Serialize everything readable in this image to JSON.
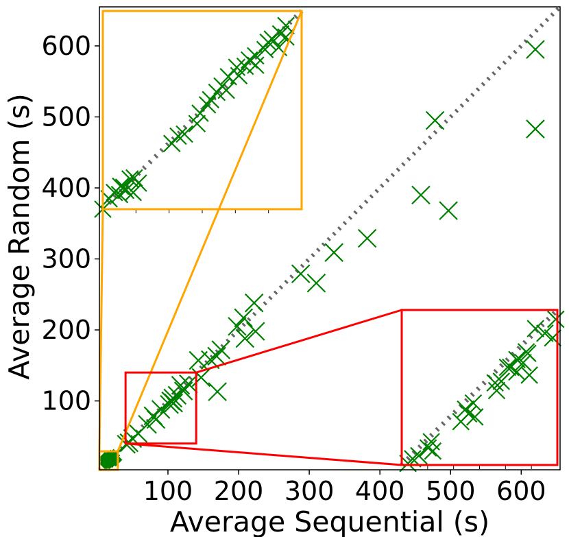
{
  "chart_data": {
    "type": "scatter",
    "xlabel": "Average Sequential (s)",
    "ylabel": "Average Random (s)",
    "xlim": [
      3,
      655
    ],
    "ylim": [
      3,
      655
    ],
    "xticks": [
      100,
      200,
      300,
      400,
      500,
      600
    ],
    "yticks": [
      100,
      200,
      300,
      400,
      500,
      600
    ],
    "grid": false,
    "diagonal": {
      "style": "dotted",
      "color": "#666666"
    },
    "colors": {
      "markers": "#008000",
      "zoom_small": "#ffa500",
      "zoom_large": "#ff0000",
      "diagonal": "#666666"
    },
    "series": [
      {
        "marker": "x",
        "color": "#008000",
        "points": [
          [
            620,
            595
          ],
          [
            620,
            483
          ],
          [
            478,
            495
          ],
          [
            458,
            390
          ],
          [
            497,
            368
          ],
          [
            382,
            329
          ],
          [
            335,
            309
          ],
          [
            288,
            279
          ],
          [
            310,
            266
          ],
          [
            222,
            238
          ],
          [
            207,
            217
          ],
          [
            198,
            205
          ],
          [
            224,
            198
          ],
          [
            209,
            188
          ],
          [
            175,
            172
          ],
          [
            169,
            163
          ],
          [
            160,
            158
          ],
          [
            143,
            157
          ],
          [
            147,
            133
          ],
          [
            129,
            124
          ],
          [
            170,
            113
          ],
          [
            118,
            122
          ],
          [
            122,
            114
          ],
          [
            113,
            108
          ],
          [
            107,
            104
          ],
          [
            104,
            100
          ],
          [
            102,
            95
          ],
          [
            108,
            97
          ],
          [
            90,
            88
          ],
          [
            79,
            79
          ],
          [
            83,
            74
          ],
          [
            71,
            67
          ],
          [
            58,
            54
          ],
          [
            50,
            47
          ],
          [
            45,
            41
          ],
          [
            41,
            39
          ]
        ]
      },
      {
        "marker": "diamond-filled",
        "color": "#008000",
        "points": [
          [
            14,
            14
          ],
          [
            16,
            17
          ],
          [
            18,
            15
          ],
          [
            20,
            19
          ],
          [
            22,
            21
          ],
          [
            13,
            16
          ],
          [
            17,
            13
          ],
          [
            19,
            22
          ],
          [
            24,
            18
          ],
          [
            15,
            20
          ],
          [
            21,
            15
          ],
          [
            12,
            12
          ],
          [
            23,
            23
          ],
          [
            26,
            17
          ],
          [
            11,
            19
          ],
          [
            18,
            18
          ]
        ]
      }
    ],
    "zoom_regions": [
      {
        "color": "#ffa500",
        "source": {
          "xlim": [
            3,
            29
          ],
          "ylim": [
            3,
            29
          ]
        },
        "inset": {
          "xlim": [
            10,
            29
          ],
          "ylim": [
            10,
            29
          ],
          "points": [
            [
              27.5,
              27.6
            ],
            [
              27.0,
              26.8
            ],
            [
              26.2,
              26.3
            ],
            [
              26.8,
              25.5
            ],
            [
              25.8,
              26.0
            ],
            [
              27.5,
              26.5
            ],
            [
              25.5,
              25.3
            ],
            [
              24.6,
              24.7
            ],
            [
              24.0,
              24.3
            ],
            [
              24.6,
              23.8
            ],
            [
              23.6,
              23.7
            ],
            [
              22.8,
              23.6
            ],
            [
              23.0,
              22.8
            ],
            [
              22.0,
              22.7
            ],
            [
              21.4,
              21.8
            ],
            [
              20.9,
              21.2
            ],
            [
              21.8,
              21.4
            ],
            [
              20.3,
              20.5
            ],
            [
              19.3,
              19.2
            ],
            [
              20.0,
              20.0
            ],
            [
              19.0,
              18.2
            ],
            [
              17.8,
              17.2
            ],
            [
              16.6,
              16.3
            ],
            [
              17.2,
              17.0
            ],
            [
              13.0,
              13.0
            ],
            [
              12.6,
              12.9
            ],
            [
              12.0,
              12.1
            ],
            [
              12.2,
              11.8
            ],
            [
              13.4,
              12.5
            ],
            [
              12.9,
              11.6
            ],
            [
              11.6,
              11.4
            ],
            [
              11.1,
              11.6
            ],
            [
              10.6,
              11.0
            ],
            [
              11.7,
              12.2
            ],
            [
              10.0,
              10.0
            ]
          ]
        }
      },
      {
        "color": "#ff0000",
        "source": {
          "xlim": [
            40,
            140
          ],
          "ylim": [
            40,
            140
          ]
        },
        "inset": {
          "xlim": [
            40,
            140
          ],
          "ylim": [
            40,
            140
          ],
          "points": [
            [
              139,
              134
            ],
            [
              132,
              125
            ],
            [
              126,
              128
            ],
            [
              137,
              122
            ],
            [
              120,
              113
            ],
            [
              121,
              112
            ],
            [
              114,
              108
            ],
            [
              118,
              106
            ],
            [
              108,
              103
            ],
            [
              110,
              103
            ],
            [
              114,
              100
            ],
            [
              122,
              98
            ],
            [
              104,
              94
            ],
            [
              100,
              93
            ],
            [
              101,
              88
            ],
            [
              86,
              80
            ],
            [
              81,
              76
            ],
            [
              83,
              73
            ],
            [
              78,
              68
            ],
            [
              87,
              71
            ],
            [
              59,
              55
            ],
            [
              57,
              51
            ],
            [
              60,
              49
            ],
            [
              51,
              46
            ],
            [
              47,
              44
            ],
            [
              44,
              41
            ]
          ]
        }
      }
    ]
  }
}
